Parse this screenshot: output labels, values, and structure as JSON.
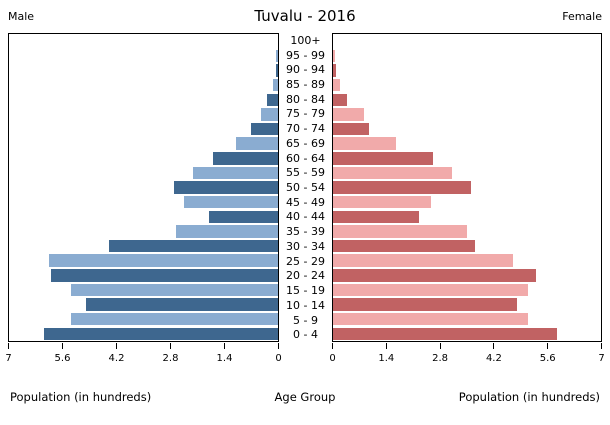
{
  "title": "Tuvalu - 2016",
  "header": {
    "male_label": "Male",
    "female_label": "Female"
  },
  "axis_labels": {
    "left": "Population (in hundreds)",
    "center": "Age Group",
    "right": "Population (in hundreds)"
  },
  "colors": {
    "male_dark": "#3e678f",
    "male_light": "#8aacd1",
    "female_dark": "#c16263",
    "female_light": "#f1aaaa",
    "axis": "#000000"
  },
  "chart_data": {
    "type": "bar",
    "subtype": "population-pyramid",
    "title": "Tuvalu - 2016",
    "unit": "hundreds",
    "categories_top_to_bottom": [
      "100+",
      "95 - 99",
      "90 - 94",
      "85 - 89",
      "80 - 84",
      "75 - 79",
      "70 - 74",
      "65 - 69",
      "60 - 64",
      "55 - 59",
      "50 - 54",
      "45 - 49",
      "40 - 44",
      "35 - 39",
      "30 - 34",
      "25 - 29",
      "20 - 24",
      "15 - 19",
      "10 - 14",
      "5 - 9",
      "0 - 4"
    ],
    "series": [
      {
        "name": "Male",
        "side": "left",
        "values_top_to_bottom": [
          0,
          0.04,
          0.05,
          0.13,
          0.28,
          0.45,
          0.7,
          1.1,
          1.7,
          2.2,
          2.7,
          2.45,
          1.8,
          2.65,
          4.4,
          5.95,
          5.9,
          5.4,
          5.0,
          5.4,
          6.1
        ]
      },
      {
        "name": "Female",
        "side": "right",
        "values_top_to_bottom": [
          0,
          0.05,
          0.08,
          0.18,
          0.37,
          0.8,
          0.95,
          1.65,
          2.6,
          3.1,
          3.6,
          2.55,
          2.25,
          3.5,
          3.7,
          4.7,
          5.3,
          5.1,
          4.8,
          5.1,
          5.85
        ]
      }
    ],
    "x_axis": {
      "label": "Population (in hundreds)",
      "range": [
        0,
        7
      ],
      "male_ticks_left_to_right": [
        "7",
        "5.6",
        "4.2",
        "2.8",
        "1.4",
        "0"
      ],
      "female_ticks_left_to_right": [
        "0",
        "1.4",
        "2.8",
        "4.2",
        "5.6",
        "7"
      ]
    },
    "y_axis": {
      "label": "Age Group"
    },
    "grid": false,
    "legend": false
  }
}
